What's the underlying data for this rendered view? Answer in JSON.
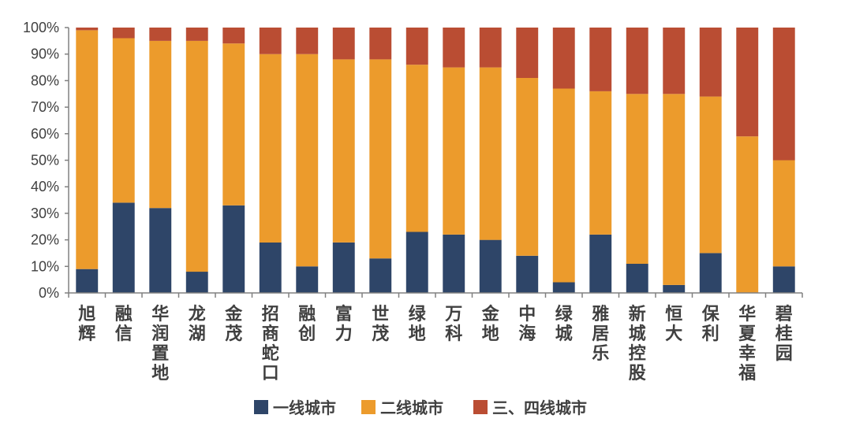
{
  "chart_data": {
    "type": "bar",
    "stacked": true,
    "categories": [
      "旭辉",
      "融信",
      "华润置地",
      "龙湖",
      "金茂",
      "招商蛇口",
      "融创",
      "富力",
      "世茂",
      "绿地",
      "万科",
      "金地",
      "中海",
      "绿城",
      "雅居乐",
      "新城控股",
      "恒大",
      "保利",
      "华夏幸福",
      "碧桂园"
    ],
    "series": [
      {
        "name": "一线城市",
        "color": "#2E4568",
        "values": [
          9,
          34,
          32,
          8,
          33,
          19,
          10,
          19,
          13,
          23,
          22,
          20,
          14,
          4,
          22,
          11,
          3,
          15,
          0,
          10
        ]
      },
      {
        "name": "二线城市",
        "color": "#EC9B2C",
        "values": [
          90,
          62,
          63,
          87,
          61,
          71,
          80,
          69,
          75,
          63,
          63,
          65,
          67,
          73,
          54,
          64,
          72,
          59,
          59,
          40
        ]
      },
      {
        "name": "三、四线城市",
        "color": "#BA4D33",
        "values": [
          1,
          4,
          5,
          5,
          6,
          10,
          10,
          12,
          12,
          14,
          15,
          15,
          19,
          23,
          24,
          25,
          25,
          26,
          41,
          50
        ]
      }
    ],
    "y_ticks": [
      "0%",
      "10%",
      "20%",
      "30%",
      "40%",
      "50%",
      "60%",
      "70%",
      "80%",
      "90%",
      "100%"
    ],
    "ylim": [
      0,
      100
    ],
    "xlabel": "",
    "ylabel": "",
    "legend_position": "bottom",
    "grid": false
  }
}
